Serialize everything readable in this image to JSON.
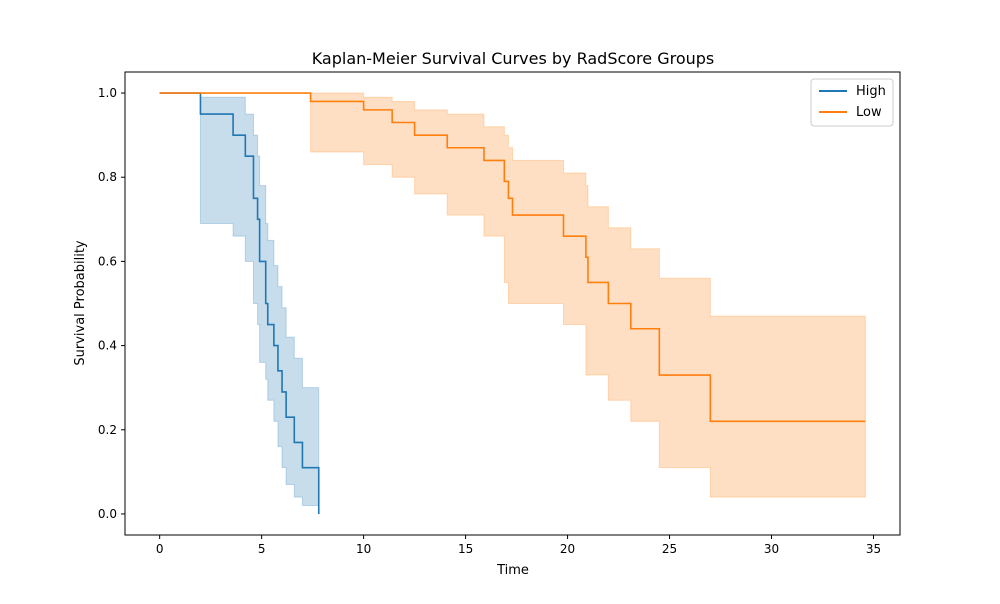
{
  "chart_data": {
    "type": "line",
    "title": "Kaplan-Meier Survival Curves by RadScore Groups",
    "xlabel": "Time",
    "ylabel": "Survival Probability",
    "xlim": [
      -1.7,
      36.3
    ],
    "ylim": [
      -0.05,
      1.05
    ],
    "xticks": [
      0,
      5,
      10,
      15,
      20,
      25,
      30,
      35
    ],
    "yticks": [
      0.0,
      0.2,
      0.4,
      0.6,
      0.8,
      1.0
    ],
    "xtick_labels": [
      "0",
      "5",
      "10",
      "15",
      "20",
      "25",
      "30",
      "35"
    ],
    "ytick_labels": [
      "0.0",
      "0.2",
      "0.4",
      "0.6",
      "0.8",
      "1.0"
    ],
    "grid": false,
    "legend": "top-right",
    "step": "post",
    "series": [
      {
        "name": "High",
        "color": "#1f77b4",
        "times": [
          0,
          2.0,
          3.6,
          4.2,
          4.6,
          4.8,
          4.9,
          5.2,
          5.3,
          5.6,
          5.8,
          6.0,
          6.2,
          6.6,
          7.0,
          7.8
        ],
        "survival": [
          1.0,
          0.95,
          0.9,
          0.85,
          0.75,
          0.7,
          0.6,
          0.5,
          0.45,
          0.4,
          0.34,
          0.29,
          0.23,
          0.17,
          0.11,
          0.0
        ],
        "ci_lower": [
          1.0,
          0.69,
          0.66,
          0.6,
          0.5,
          0.45,
          0.36,
          0.32,
          0.27,
          0.22,
          0.16,
          0.11,
          0.07,
          0.04,
          0.02,
          0.02
        ],
        "ci_upper": [
          1.0,
          0.99,
          0.99,
          0.95,
          0.9,
          0.85,
          0.78,
          0.69,
          0.65,
          0.59,
          0.54,
          0.49,
          0.42,
          0.37,
          0.3,
          0.3
        ],
        "end_time": 7.8
      },
      {
        "name": "Low",
        "color": "#ff7f0e",
        "times": [
          0,
          7.4,
          10.0,
          11.4,
          12.5,
          14.1,
          15.9,
          16.9,
          17.1,
          17.3,
          19.8,
          20.9,
          21.0,
          22.0,
          23.1,
          24.5,
          27.0
        ],
        "survival": [
          1.0,
          0.98,
          0.96,
          0.93,
          0.9,
          0.87,
          0.84,
          0.79,
          0.75,
          0.71,
          0.66,
          0.61,
          0.55,
          0.5,
          0.44,
          0.33,
          0.22
        ],
        "ci_lower": [
          1.0,
          0.86,
          0.83,
          0.8,
          0.76,
          0.71,
          0.66,
          0.55,
          0.5,
          0.5,
          0.45,
          0.33,
          0.33,
          0.27,
          0.22,
          0.11,
          0.04
        ],
        "ci_upper": [
          1.0,
          1.0,
          0.99,
          0.98,
          0.96,
          0.95,
          0.92,
          0.9,
          0.87,
          0.84,
          0.81,
          0.78,
          0.73,
          0.68,
          0.63,
          0.56,
          0.47
        ],
        "end_time": 34.6
      }
    ]
  }
}
